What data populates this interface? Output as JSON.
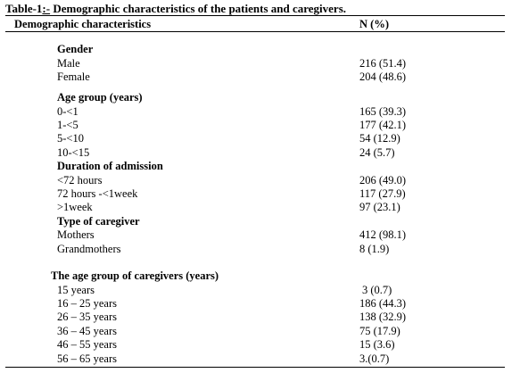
{
  "title": {
    "prefix": "Table-1",
    "underlined": ":-",
    "rest": " Demographic characteristics of the patients and caregivers."
  },
  "header": {
    "col1": "Demographic characteristics",
    "col2": "N (%)"
  },
  "sections": [
    {
      "heading": "Gender",
      "rows": [
        {
          "label": "Male",
          "value": "216 (51.4)"
        },
        {
          "label": "Female",
          "value": "204 (48.6)"
        }
      ]
    },
    {
      "heading": "Age group (years)",
      "rows": [
        {
          "label": "0-<1",
          "value": "165 (39.3)"
        },
        {
          "label": "1-<5",
          "value": "177 (42.1)"
        },
        {
          "label": "5-<10",
          "value": "54 (12.9)"
        },
        {
          "label": "10-<15",
          "value": "24 (5.7)"
        }
      ]
    },
    {
      "heading": "Duration of admission",
      "rows": [
        {
          "label": "<72 hours",
          "value": "206 (49.0)"
        },
        {
          "label": "72 hours -<1week",
          "value": "117 (27.9)"
        },
        {
          "label": ">1week",
          "value": "97 (23.1)"
        }
      ]
    },
    {
      "heading": "Type of caregiver",
      "rows": [
        {
          "label": "Mothers",
          "value": "412 (98.1)"
        },
        {
          "label": "Grandmothers",
          "value": "8 (1.9)"
        }
      ]
    },
    {
      "heading": "The age group of caregivers (years)",
      "rows": [
        {
          "label": "15 years",
          "value": "3 (0.7)"
        },
        {
          "label": "16 – 25 years",
          "value": "186 (44.3)"
        },
        {
          "label": "26 – 35 years",
          "value": "138 (32.9)"
        },
        {
          "label": "36 – 45 years",
          "value": "75 (17.9)"
        },
        {
          "label": "46 – 55 years",
          "value": "15 (3.6)"
        },
        {
          "label": "56 – 65 years",
          "value": "3.(0.7)"
        }
      ]
    }
  ]
}
